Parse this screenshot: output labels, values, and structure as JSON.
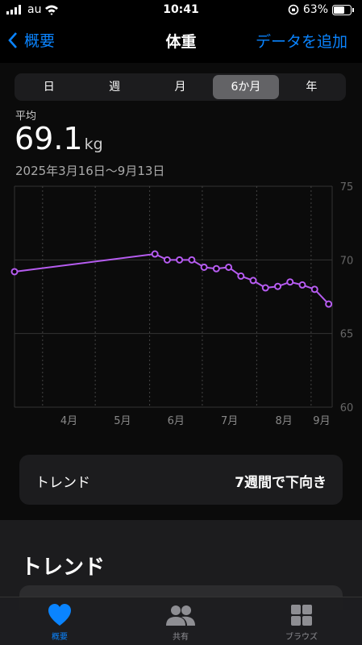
{
  "status_bar": {
    "carrier": "au",
    "time": "10:41",
    "battery": "63%"
  },
  "nav": {
    "back": "概要",
    "title": "体重",
    "action": "データを追加"
  },
  "segments": {
    "items": [
      "日",
      "週",
      "月",
      "6か月",
      "年"
    ],
    "selected": 3
  },
  "summary": {
    "label": "平均",
    "value": 69.1,
    "unit": "kg",
    "range": "2025年3月16日〜9月13日"
  },
  "chart_data": {
    "type": "line",
    "x": [
      0,
      80,
      87,
      94,
      101,
      108,
      115,
      122,
      129,
      136,
      143,
      150,
      157,
      164,
      171,
      179
    ],
    "values": [
      69.2,
      70.4,
      70.0,
      70.0,
      70.0,
      69.5,
      69.4,
      69.5,
      68.9,
      68.6,
      68.1,
      68.2,
      68.5,
      68.3,
      68.0,
      67.0
    ],
    "color": "#b65cf0",
    "xlim": [
      0,
      181
    ],
    "xticks": [
      {
        "value": 16,
        "label": "4月"
      },
      {
        "value": 46,
        "label": "5月"
      },
      {
        "value": 77,
        "label": "6月"
      },
      {
        "value": 107,
        "label": "7月"
      },
      {
        "value": 138,
        "label": "8月"
      },
      {
        "value": 169,
        "label": "9月"
      }
    ],
    "ylim": [
      60,
      75
    ],
    "yticks": [
      60,
      65,
      70,
      75
    ],
    "grid": true
  },
  "trend_card": {
    "label": "トレンド",
    "value": "7週間で下向き"
  },
  "section_title": "トレンド",
  "tab_bar": {
    "items": [
      "概要",
      "共有",
      "ブラウズ"
    ]
  }
}
